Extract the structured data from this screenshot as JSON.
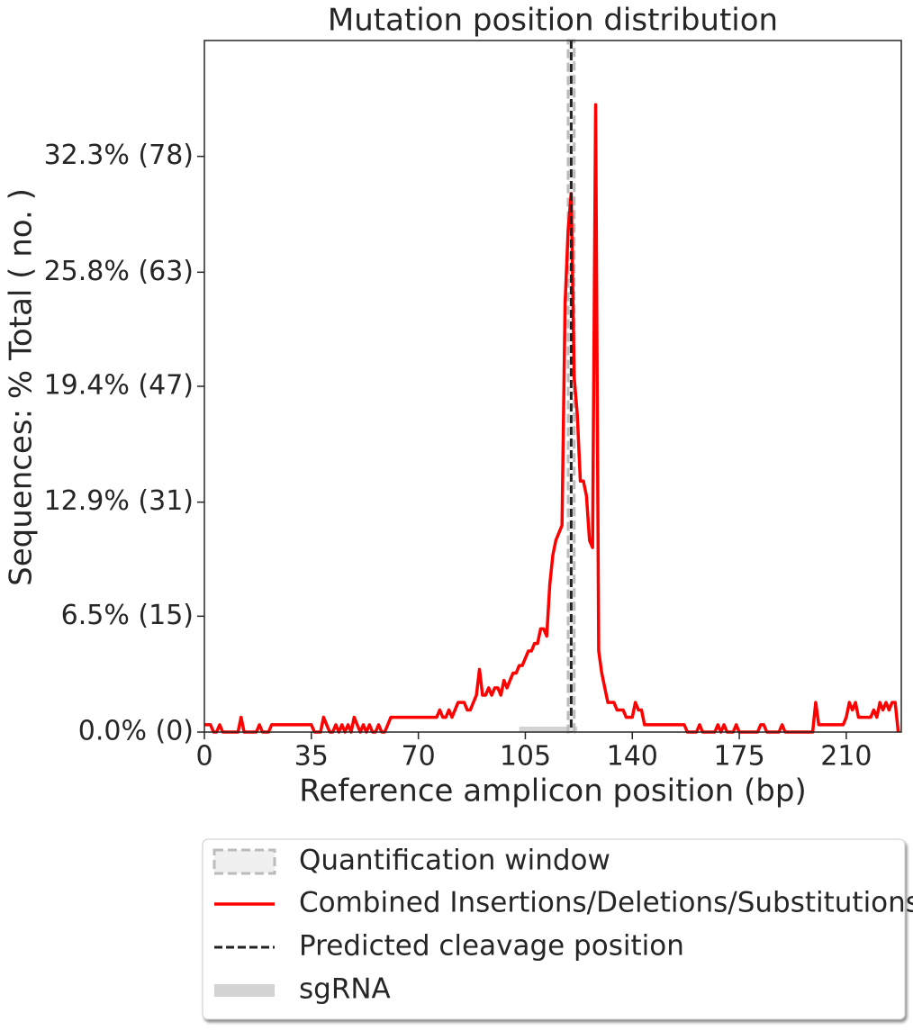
{
  "chart_data": {
    "type": "line",
    "title": "Mutation position distribution",
    "x_label": "Reference amplicon position (bp)",
    "y_label": "Sequences: % Total ( no. )",
    "x": [
      0,
      1,
      2,
      3,
      4,
      5,
      6,
      7,
      8,
      9,
      10,
      11,
      12,
      13,
      14,
      15,
      16,
      17,
      18,
      19,
      20,
      21,
      22,
      23,
      24,
      25,
      26,
      27,
      28,
      29,
      30,
      31,
      32,
      33,
      34,
      35,
      36,
      37,
      38,
      39,
      40,
      41,
      42,
      43,
      44,
      45,
      46,
      47,
      48,
      49,
      50,
      51,
      52,
      53,
      54,
      55,
      56,
      57,
      58,
      59,
      60,
      61,
      62,
      63,
      64,
      65,
      66,
      67,
      68,
      69,
      70,
      71,
      72,
      73,
      74,
      75,
      76,
      77,
      78,
      79,
      80,
      81,
      82,
      83,
      84,
      85,
      86,
      87,
      88,
      89,
      90,
      91,
      92,
      93,
      94,
      95,
      96,
      97,
      98,
      99,
      100,
      101,
      102,
      103,
      104,
      105,
      106,
      107,
      108,
      109,
      110,
      111,
      112,
      113,
      114,
      115,
      116,
      117,
      118,
      119,
      120,
      121,
      122,
      123,
      124,
      125,
      126,
      127,
      128,
      129,
      130,
      131,
      132,
      133,
      134,
      135,
      136,
      137,
      138,
      139,
      140,
      141,
      142,
      143,
      144,
      145,
      146,
      147,
      148,
      149,
      150,
      151,
      152,
      153,
      154,
      155,
      156,
      157,
      158,
      159,
      160,
      161,
      162,
      163,
      164,
      165,
      166,
      167,
      168,
      169,
      170,
      171,
      172,
      173,
      174,
      175,
      176,
      177,
      178,
      179,
      180,
      181,
      182,
      183,
      184,
      185,
      186,
      187,
      188,
      189,
      190,
      191,
      192,
      193,
      194,
      195,
      196,
      197,
      198,
      199,
      200,
      201,
      202,
      203,
      204,
      205,
      206,
      207,
      208,
      209,
      210,
      211,
      212,
      213,
      214,
      215,
      216,
      217,
      218,
      219,
      220,
      221,
      222,
      223,
      224,
      225,
      226,
      227
    ],
    "series": [
      {
        "name": "Combined Insertions/Deletions/Substitutions",
        "color": "#ff0000",
        "values": [
          0.41,
          0.41,
          0.41,
          0,
          0,
          0.41,
          0,
          0,
          0,
          0,
          0,
          0,
          0.83,
          0,
          0,
          0,
          0,
          0,
          0.41,
          0,
          0,
          0,
          0.41,
          0.41,
          0.41,
          0.41,
          0.41,
          0.41,
          0.41,
          0.41,
          0.41,
          0.41,
          0.41,
          0.41,
          0.41,
          0.41,
          0,
          0,
          0,
          0.83,
          0.41,
          0,
          0,
          0.41,
          0,
          0.41,
          0,
          0.41,
          0,
          0.83,
          0.41,
          0,
          0.41,
          0,
          0.41,
          0,
          0,
          0.41,
          0,
          0,
          0.41,
          0.83,
          0.83,
          0.83,
          0.83,
          0.83,
          0.83,
          0.83,
          0.83,
          0.83,
          0.83,
          0.83,
          0.83,
          0.83,
          0.83,
          0.83,
          0.83,
          1.24,
          0.83,
          0.83,
          1.24,
          0.83,
          1.24,
          1.66,
          1.66,
          1.66,
          1.24,
          1.24,
          1.66,
          2.07,
          3.52,
          2.07,
          2.07,
          2.48,
          2.07,
          2.48,
          2.48,
          2.07,
          2.9,
          2.48,
          2.9,
          3.31,
          3.31,
          3.73,
          3.73,
          4.14,
          4.55,
          4.55,
          4.97,
          4.97,
          5.79,
          5.79,
          5.38,
          8.28,
          9.93,
          10.76,
          11.18,
          11.59,
          24.0,
          28.15,
          30.22,
          19.87,
          17.81,
          14.08,
          14.08,
          13.25,
          10.76,
          10.35,
          35.2,
          4.55,
          3.31,
          2.48,
          1.66,
          1.66,
          1.66,
          1.24,
          1.24,
          1.24,
          0.83,
          0.83,
          0.83,
          1.66,
          1.24,
          1.24,
          0.41,
          0.41,
          0.41,
          0.41,
          0.41,
          0.41,
          0.41,
          0.41,
          0.41,
          0.41,
          0.41,
          0.41,
          0.41,
          0.41,
          0,
          0,
          0,
          0,
          0.41,
          0,
          0,
          0,
          0,
          0,
          0.41,
          0,
          0.41,
          0,
          0,
          0,
          0.41,
          0,
          0,
          0,
          0,
          0,
          0,
          0,
          0.41,
          0.41,
          0,
          0,
          0,
          0,
          0,
          0.41,
          0,
          0,
          0,
          0,
          0,
          0,
          0,
          0,
          0,
          0,
          1.66,
          0.41,
          0.41,
          0.41,
          0.41,
          0.41,
          0.41,
          0.41,
          0.41,
          0.41,
          0.83,
          1.66,
          1.24,
          1.66,
          0.83,
          0.83,
          0.83,
          0.83,
          0.83,
          1.24,
          0.83,
          1.66,
          1.24,
          1.66,
          1.24,
          1.66,
          1.66,
          0
        ]
      }
    ],
    "quantification_window": {
      "name": "Quantification window",
      "range": [
        119,
        121
      ]
    },
    "cleavage": {
      "name": "Predicted cleavage position",
      "position": 120
    },
    "sgrna": {
      "name": "sgRNA",
      "range": [
        103,
        122
      ]
    },
    "xlim": [
      0,
      228
    ],
    "ylim": [
      0,
      38.8
    ],
    "xticks": [
      0,
      35,
      70,
      105,
      140,
      175,
      210
    ],
    "yticks": [
      {
        "value": 0,
        "label": "0.0% (0)"
      },
      {
        "value": 6.5,
        "label": "6.5% (15)"
      },
      {
        "value": 12.9,
        "label": "12.9% (31)"
      },
      {
        "value": 19.4,
        "label": "19.4% (47)"
      },
      {
        "value": 25.8,
        "label": "25.8% (63)"
      },
      {
        "value": 32.3,
        "label": "32.3% (78)"
      }
    ]
  }
}
